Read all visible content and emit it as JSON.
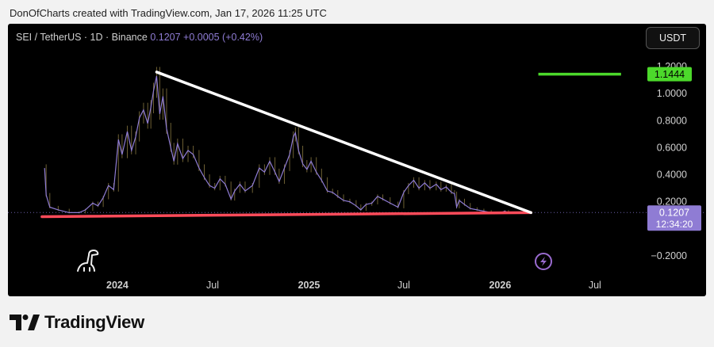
{
  "caption": "DonOfCharts created with TradingView.com, Jan 17, 2026 11:25 UTC",
  "legend": {
    "symbol": "SEI / TetherUS · 1D · Binance",
    "price": "0.1207",
    "change": "+0.0005 (+0.42%)"
  },
  "currency_button": "USDT",
  "brand": "TradingView",
  "colors": {
    "background": "#000000",
    "price_line": "#8f7cd4",
    "candle_wick": "#c8b060",
    "resistance": "#ffffff",
    "support": "#ff4b5a",
    "target": "#4cd92b",
    "price_tag": "#8f7cd4"
  },
  "chart_data": {
    "type": "line",
    "ylim": [
      -0.3,
      1.4
    ],
    "y_ticks": [
      {
        "value": -0.2,
        "label": "−0.2000"
      },
      {
        "value": 0.2,
        "label": "0.2000"
      },
      {
        "value": 0.4,
        "label": "0.4000"
      },
      {
        "value": 0.6,
        "label": "0.6000"
      },
      {
        "value": 0.8,
        "label": "0.8000"
      },
      {
        "value": 1.0,
        "label": "1.0000"
      },
      {
        "value": 1.2,
        "label": "1.2000"
      }
    ],
    "x_ticks": [
      {
        "date": "2024-01-01",
        "label": "2024",
        "bold": true
      },
      {
        "date": "2024-07-01",
        "label": "Jul",
        "bold": false
      },
      {
        "date": "2025-01-01",
        "label": "2025",
        "bold": true
      },
      {
        "date": "2025-07-01",
        "label": "Jul",
        "bold": false
      },
      {
        "date": "2026-01-01",
        "label": "2026",
        "bold": true
      },
      {
        "date": "2026-07-01",
        "label": "Jul",
        "bold": false
      }
    ],
    "xlim": [
      "2023-06-06",
      "2026-09-15"
    ],
    "series": [
      {
        "points": [
          [
            "2023-08-15",
            0.45
          ],
          [
            "2023-08-18",
            0.25
          ],
          [
            "2023-08-25",
            0.16
          ],
          [
            "2023-09-10",
            0.14
          ],
          [
            "2023-10-01",
            0.12
          ],
          [
            "2023-10-20",
            0.12
          ],
          [
            "2023-11-01",
            0.14
          ],
          [
            "2023-11-15",
            0.19
          ],
          [
            "2023-11-25",
            0.17
          ],
          [
            "2023-12-05",
            0.23
          ],
          [
            "2023-12-15",
            0.32
          ],
          [
            "2023-12-25",
            0.29
          ],
          [
            "2024-01-03",
            0.66
          ],
          [
            "2024-01-10",
            0.55
          ],
          [
            "2024-01-20",
            0.72
          ],
          [
            "2024-01-28",
            0.58
          ],
          [
            "2024-02-05",
            0.68
          ],
          [
            "2024-02-12",
            0.82
          ],
          [
            "2024-02-20",
            0.88
          ],
          [
            "2024-02-28",
            0.78
          ],
          [
            "2024-03-05",
            0.9
          ],
          [
            "2024-03-10",
            1.02
          ],
          [
            "2024-03-16",
            1.13
          ],
          [
            "2024-03-22",
            0.85
          ],
          [
            "2024-03-28",
            0.98
          ],
          [
            "2024-04-04",
            0.74
          ],
          [
            "2024-04-12",
            0.6
          ],
          [
            "2024-04-18",
            0.5
          ],
          [
            "2024-04-25",
            0.63
          ],
          [
            "2024-05-05",
            0.52
          ],
          [
            "2024-05-15",
            0.58
          ],
          [
            "2024-05-25",
            0.55
          ],
          [
            "2024-06-05",
            0.45
          ],
          [
            "2024-06-15",
            0.38
          ],
          [
            "2024-06-25",
            0.32
          ],
          [
            "2024-07-05",
            0.3
          ],
          [
            "2024-07-15",
            0.37
          ],
          [
            "2024-07-25",
            0.33
          ],
          [
            "2024-08-05",
            0.22
          ],
          [
            "2024-08-12",
            0.28
          ],
          [
            "2024-08-22",
            0.33
          ],
          [
            "2024-09-01",
            0.28
          ],
          [
            "2024-09-15",
            0.32
          ],
          [
            "2024-09-28",
            0.45
          ],
          [
            "2024-10-08",
            0.42
          ],
          [
            "2024-10-18",
            0.5
          ],
          [
            "2024-10-28",
            0.42
          ],
          [
            "2024-11-05",
            0.35
          ],
          [
            "2024-11-15",
            0.45
          ],
          [
            "2024-11-25",
            0.55
          ],
          [
            "2024-12-02",
            0.68
          ],
          [
            "2024-12-06",
            0.71
          ],
          [
            "2024-12-12",
            0.58
          ],
          [
            "2024-12-20",
            0.48
          ],
          [
            "2024-12-28",
            0.44
          ],
          [
            "2025-01-05",
            0.5
          ],
          [
            "2025-01-15",
            0.42
          ],
          [
            "2025-01-25",
            0.36
          ],
          [
            "2025-02-05",
            0.28
          ],
          [
            "2025-02-15",
            0.27
          ],
          [
            "2025-02-25",
            0.24
          ],
          [
            "2025-03-08",
            0.21
          ],
          [
            "2025-03-20",
            0.2
          ],
          [
            "2025-04-01",
            0.17
          ],
          [
            "2025-04-10",
            0.14
          ],
          [
            "2025-04-20",
            0.18
          ],
          [
            "2025-05-01",
            0.19
          ],
          [
            "2025-05-12",
            0.24
          ],
          [
            "2025-05-22",
            0.22
          ],
          [
            "2025-06-05",
            0.19
          ],
          [
            "2025-06-20",
            0.16
          ],
          [
            "2025-07-01",
            0.27
          ],
          [
            "2025-07-10",
            0.32
          ],
          [
            "2025-07-20",
            0.36
          ],
          [
            "2025-07-30",
            0.3
          ],
          [
            "2025-08-10",
            0.34
          ],
          [
            "2025-08-20",
            0.3
          ],
          [
            "2025-09-01",
            0.33
          ],
          [
            "2025-09-10",
            0.29
          ],
          [
            "2025-09-20",
            0.31
          ],
          [
            "2025-09-30",
            0.27
          ],
          [
            "2025-10-06",
            0.26
          ],
          [
            "2025-10-10",
            0.16
          ],
          [
            "2025-10-15",
            0.21
          ],
          [
            "2025-10-25",
            0.18
          ],
          [
            "2025-11-05",
            0.15
          ],
          [
            "2025-11-18",
            0.14
          ],
          [
            "2025-12-01",
            0.13
          ],
          [
            "2025-12-15",
            0.12
          ],
          [
            "2026-01-01",
            0.12
          ],
          [
            "2026-01-10",
            0.13
          ],
          [
            "2026-01-17",
            0.12
          ]
        ]
      }
    ],
    "annotations": {
      "resistance_line": {
        "from": [
          "2024-03-16",
          1.16
        ],
        "to": [
          "2026-03-01",
          0.12
        ]
      },
      "support_line": {
        "from": [
          "2023-08-10",
          0.09
        ],
        "to": [
          "2026-03-01",
          0.12
        ]
      },
      "target_line": {
        "from": [
          "2026-03-15",
          1.1444
        ],
        "to": [
          "2026-08-20",
          1.1444
        ]
      }
    },
    "price_labels": [
      {
        "value": 1.1444,
        "text": "1.1444",
        "style": "target"
      },
      {
        "value": 0.1207,
        "text": "0.1207",
        "style": "current",
        "subtext": "12:34:20"
      }
    ]
  }
}
